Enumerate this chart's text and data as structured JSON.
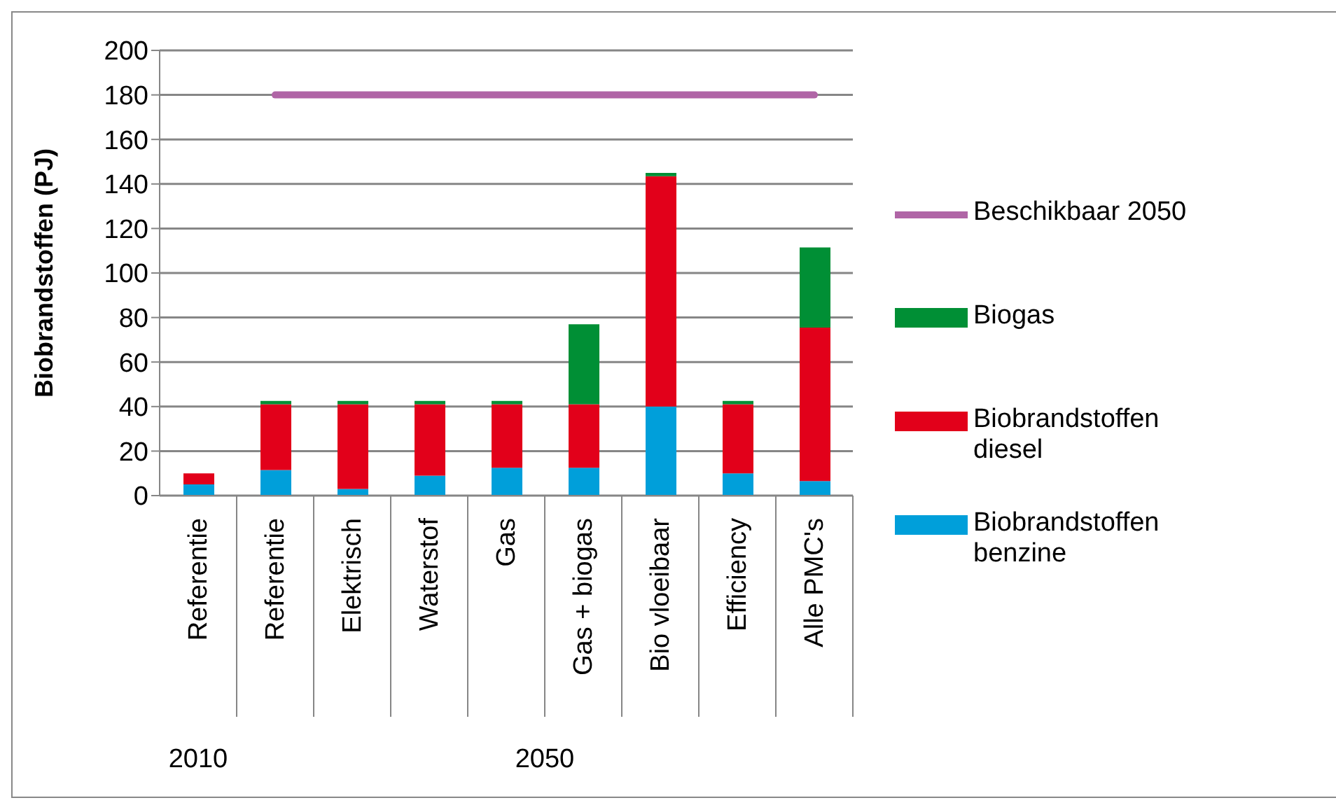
{
  "chart_data": {
    "type": "bar",
    "stacked": true,
    "ylabel": "Biobrandstoffen  (PJ)",
    "categories": [
      "Referentie",
      "Referentie",
      "Elektrisch",
      "Waterstof",
      "Gas",
      "Gas + biogas",
      "Bio vloeibaar",
      "Efficiency",
      "Alle PMC's"
    ],
    "series": [
      {
        "name": "Biobrandstoffen benzine",
        "color": "#009fda",
        "values": [
          5,
          11.5,
          3,
          9,
          12.5,
          12.5,
          40,
          10,
          6.5
        ]
      },
      {
        "name": "Biobrandstoffen diesel",
        "color": "#e2001a",
        "values": [
          5,
          29.5,
          38,
          32,
          28.5,
          28.5,
          103.5,
          31,
          69
        ]
      },
      {
        "name": "Biogas",
        "color": "#008f35",
        "values": [
          0,
          1.5,
          1.5,
          1.5,
          1.5,
          36,
          1.5,
          1.5,
          36
        ]
      },
      {
        "name": "Beschikbaar 2050",
        "color": "#b065a6",
        "type": "line",
        "values": [
          null,
          180,
          180,
          180,
          180,
          180,
          180,
          180,
          180
        ]
      }
    ],
    "ylim": [
      0,
      200
    ],
    "yticks": [
      0,
      20,
      40,
      60,
      80,
      100,
      120,
      140,
      160,
      180,
      200
    ],
    "grid": "y",
    "legend": "right",
    "marker": "none",
    "annotations": [
      "2010",
      "2050"
    ]
  }
}
